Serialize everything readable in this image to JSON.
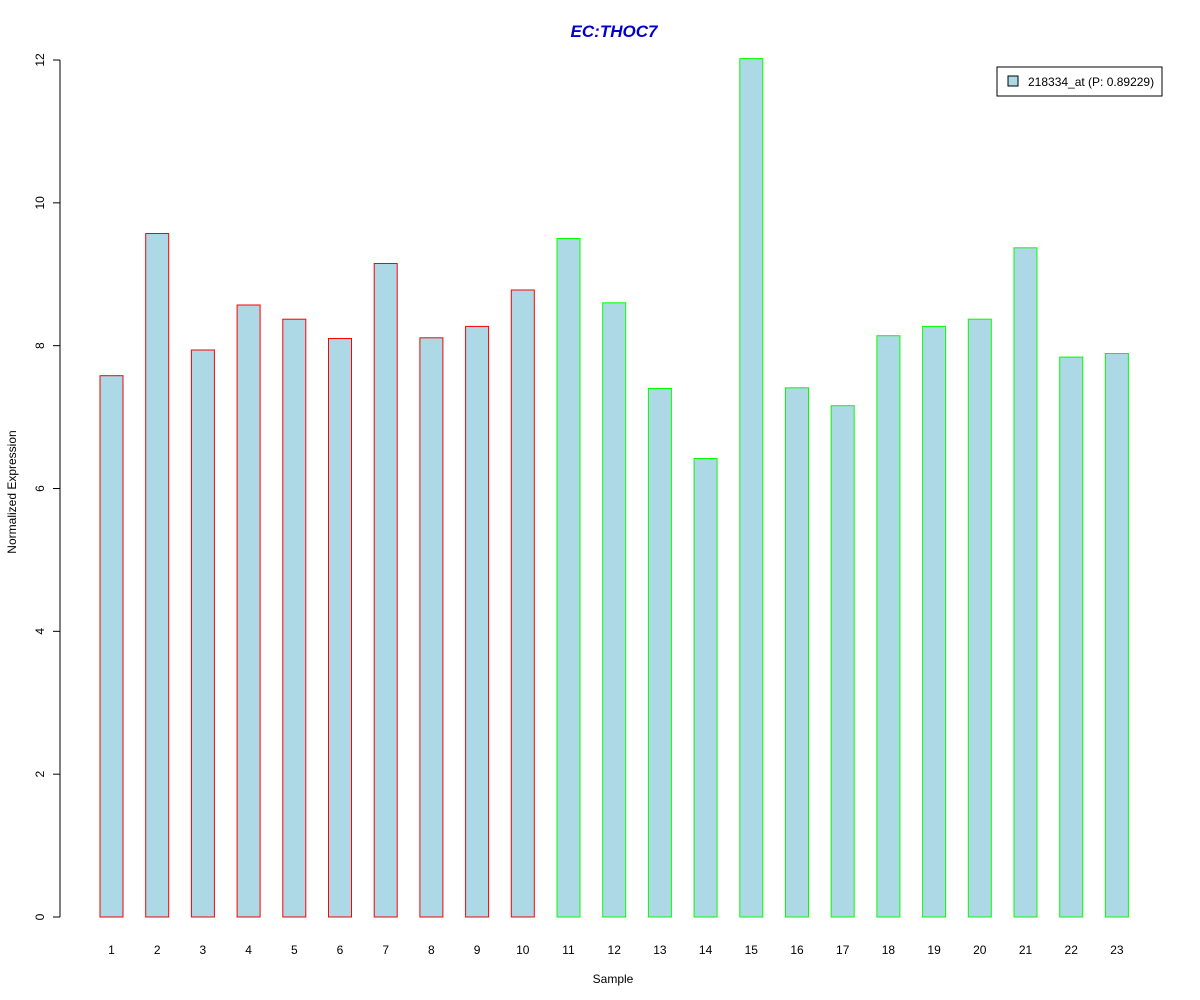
{
  "chart_data": {
    "type": "bar",
    "title": "EC:THOC7",
    "xlabel": "Sample",
    "ylabel": "Normalized Expression",
    "ylim": [
      0,
      12
    ],
    "yticks": [
      "0",
      "2",
      "4",
      "6",
      "8",
      "10",
      "12"
    ],
    "grid": false,
    "legend_position": "top-right",
    "categories": [
      "1",
      "2",
      "3",
      "4",
      "5",
      "6",
      "7",
      "8",
      "9",
      "10",
      "11",
      "12",
      "13",
      "14",
      "15",
      "16",
      "17",
      "18",
      "19",
      "20",
      "21",
      "22",
      "23"
    ],
    "series": [
      {
        "name": "218334_at (P: 0.89229)",
        "values": [
          7.58,
          9.57,
          7.94,
          8.57,
          8.37,
          8.1,
          9.15,
          8.11,
          8.27,
          8.78,
          9.5,
          8.6,
          7.4,
          6.42,
          12.02,
          7.41,
          7.16,
          8.14,
          8.27,
          8.37,
          9.37,
          7.84,
          7.89
        ],
        "groups": [
          "a",
          "a",
          "a",
          "a",
          "a",
          "a",
          "a",
          "a",
          "a",
          "a",
          "b",
          "b",
          "b",
          "b",
          "b",
          "b",
          "b",
          "b",
          "b",
          "b",
          "b",
          "b",
          "b"
        ]
      }
    ],
    "colors": {
      "title": "#0000cc",
      "bar_fill": "#add8e6",
      "group_a_border": "#ff0000",
      "group_b_border": "#00ff00",
      "axis": "#000000"
    }
  }
}
